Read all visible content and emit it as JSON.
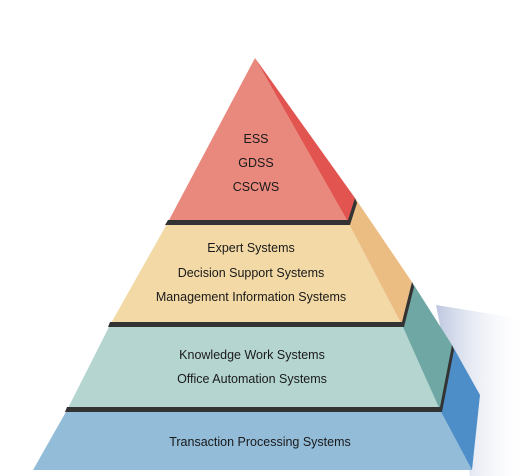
{
  "colors": {
    "apex_front": "#e9897e",
    "apex_side": "#e2544f",
    "tier2_front": "#f2d9a6",
    "tier2_side": "#ebbd83",
    "tier3_front": "#b5d5d1",
    "tier3_side": "#6ea7a4",
    "base_front": "#93bcd9",
    "base_side": "#4d8ec8",
    "divider": "#333333",
    "shadow": "#c9d2e6"
  },
  "pyramid": {
    "apex": {
      "lines": [
        "ESS",
        "GDSS",
        "CSCWS"
      ]
    },
    "tier2": {
      "lines": [
        "Expert Systems",
        "Decision Support Systems",
        "Management Information Systems"
      ]
    },
    "tier3": {
      "lines": [
        "Knowledge Work Systems",
        "Office Automation Systems"
      ]
    },
    "base": {
      "lines": [
        "Transaction Processing Systems"
      ]
    }
  }
}
